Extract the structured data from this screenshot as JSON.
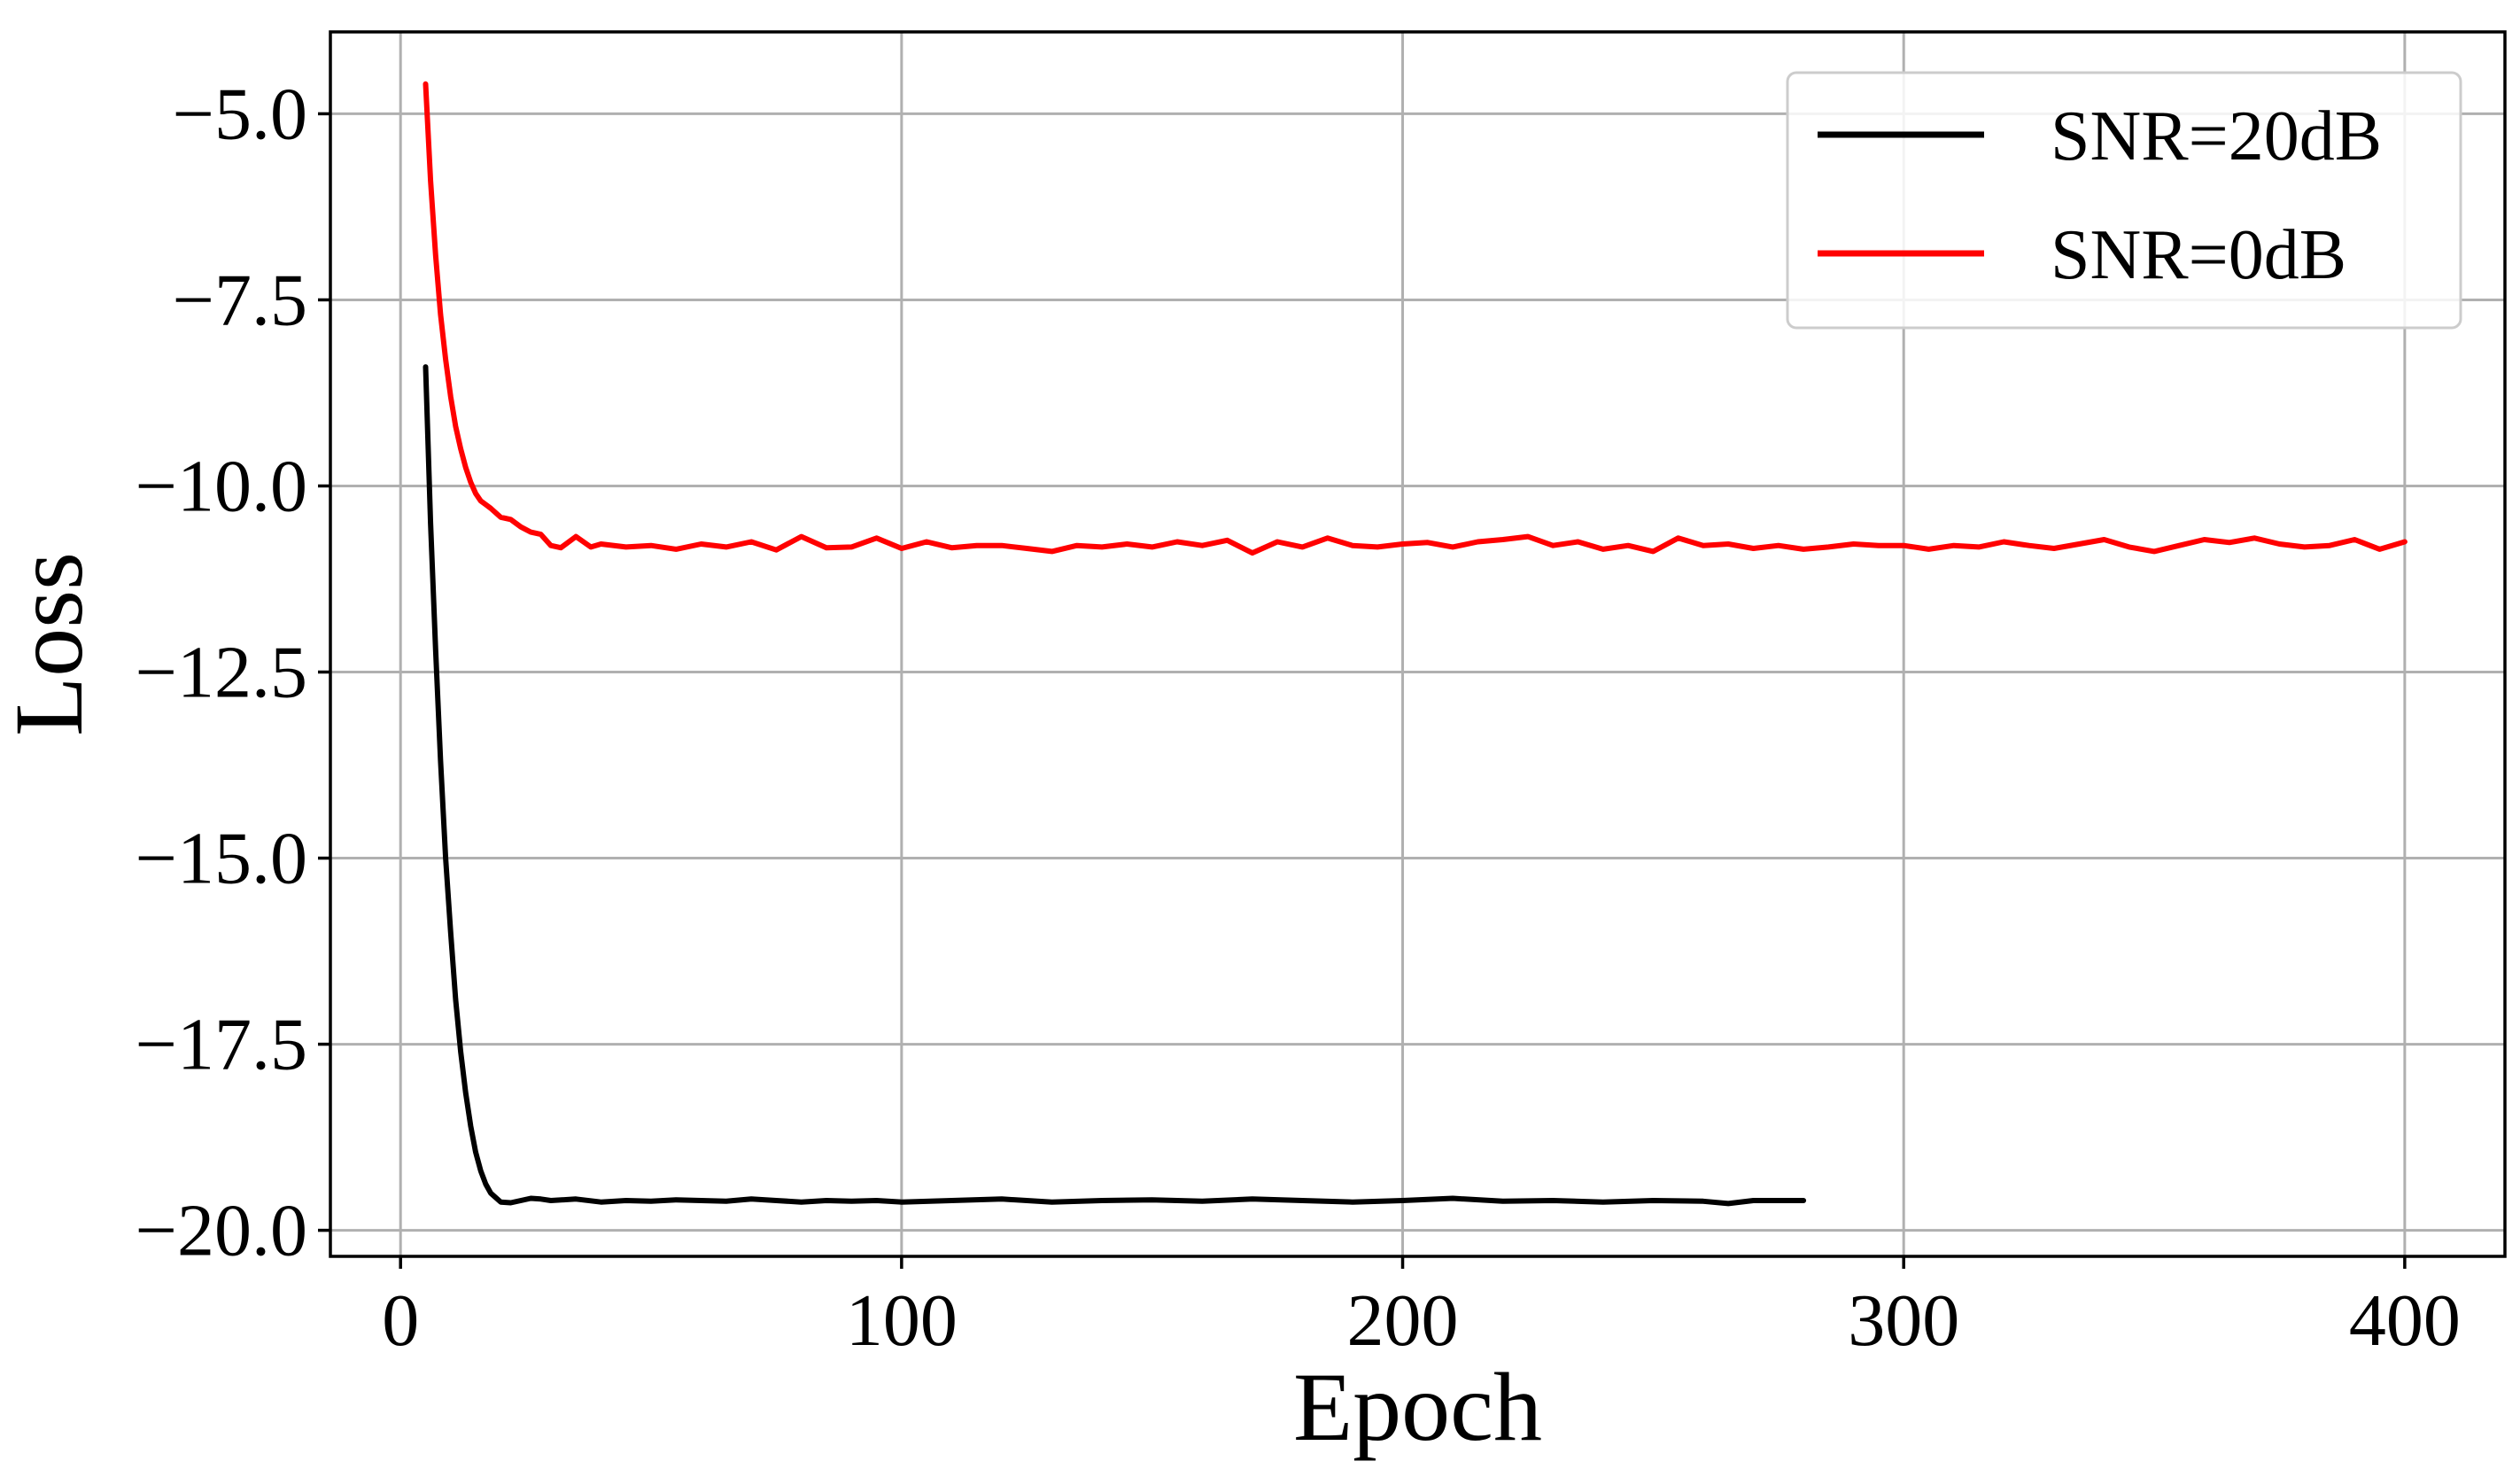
{
  "chart_data": {
    "type": "line",
    "xlabel": "Epoch",
    "ylabel": "Loss",
    "xlim": [
      -14,
      420
    ],
    "ylim": [
      -20.35,
      -3.9
    ],
    "xticks": [
      0,
      100,
      200,
      300,
      400
    ],
    "xtick_labels": [
      "0",
      "100",
      "200",
      "300",
      "400"
    ],
    "yticks": [
      -5.0,
      -7.5,
      -10.0,
      -12.5,
      -15.0,
      -17.5,
      -20.0
    ],
    "ytick_labels": [
      "−5.0",
      "−7.5",
      "−10.0",
      "−12.5",
      "−15.0",
      "−17.5",
      "−20.0"
    ],
    "grid": true,
    "legend_position": "top-right",
    "series": [
      {
        "name": "SNR=20dB",
        "color": "#000000",
        "x": [
          5,
          6,
          7,
          8,
          9,
          10,
          11,
          12,
          13,
          14,
          15,
          16,
          17,
          18,
          20,
          22,
          24,
          26,
          28,
          30,
          35,
          40,
          45,
          50,
          55,
          60,
          65,
          70,
          75,
          80,
          85,
          90,
          95,
          100,
          110,
          120,
          130,
          140,
          150,
          160,
          170,
          180,
          190,
          200,
          210,
          220,
          230,
          240,
          250,
          260,
          265,
          270,
          280
        ],
        "y": [
          -8.4,
          -10.5,
          -12.2,
          -13.7,
          -15.0,
          -16.0,
          -16.9,
          -17.6,
          -18.15,
          -18.6,
          -18.95,
          -19.2,
          -19.38,
          -19.5,
          -19.62,
          -19.63,
          -19.6,
          -19.57,
          -19.58,
          -19.6,
          -19.58,
          -19.62,
          -19.6,
          -19.61,
          -19.59,
          -19.6,
          -19.61,
          -19.58,
          -19.6,
          -19.62,
          -19.6,
          -19.61,
          -19.6,
          -19.62,
          -19.6,
          -19.58,
          -19.62,
          -19.6,
          -19.59,
          -19.61,
          -19.58,
          -19.6,
          -19.62,
          -19.6,
          -19.57,
          -19.61,
          -19.6,
          -19.62,
          -19.6,
          -19.61,
          -19.64,
          -19.6,
          -19.6
        ]
      },
      {
        "name": "SNR=0dB",
        "color": "#ff0000",
        "x": [
          5,
          6,
          7,
          8,
          9,
          10,
          11,
          12,
          13,
          14,
          15,
          16,
          17,
          18,
          20,
          22,
          24,
          26,
          28,
          30,
          32,
          35,
          38,
          40,
          45,
          50,
          55,
          60,
          65,
          70,
          75,
          80,
          85,
          90,
          95,
          100,
          105,
          110,
          115,
          120,
          125,
          130,
          135,
          140,
          145,
          150,
          155,
          160,
          165,
          170,
          175,
          180,
          185,
          190,
          195,
          200,
          205,
          210,
          215,
          220,
          225,
          230,
          235,
          240,
          245,
          250,
          255,
          260,
          265,
          270,
          275,
          280,
          285,
          290,
          295,
          300,
          305,
          310,
          315,
          320,
          325,
          330,
          335,
          340,
          345,
          350,
          355,
          360,
          365,
          370,
          375,
          380,
          385,
          390,
          395,
          400
        ],
        "y": [
          -4.6,
          -5.9,
          -6.9,
          -7.7,
          -8.3,
          -8.8,
          -9.2,
          -9.5,
          -9.75,
          -9.95,
          -10.1,
          -10.2,
          -10.25,
          -10.3,
          -10.42,
          -10.45,
          -10.55,
          -10.62,
          -10.65,
          -10.8,
          -10.83,
          -10.68,
          -10.82,
          -10.78,
          -10.82,
          -10.8,
          -10.85,
          -10.78,
          -10.82,
          -10.75,
          -10.86,
          -10.68,
          -10.83,
          -10.82,
          -10.7,
          -10.84,
          -10.75,
          -10.83,
          -10.8,
          -10.8,
          -10.84,
          -10.88,
          -10.8,
          -10.82,
          -10.78,
          -10.82,
          -10.75,
          -10.8,
          -10.73,
          -10.9,
          -10.75,
          -10.82,
          -10.7,
          -10.8,
          -10.82,
          -10.78,
          -10.76,
          -10.82,
          -10.75,
          -10.72,
          -10.68,
          -10.8,
          -10.75,
          -10.85,
          -10.8,
          -10.88,
          -10.7,
          -10.8,
          -10.78,
          -10.84,
          -10.8,
          -10.85,
          -10.82,
          -10.78,
          -10.8,
          -10.8,
          -10.85,
          -10.8,
          -10.82,
          -10.75,
          -10.8,
          -10.84,
          -10.78,
          -10.72,
          -10.82,
          -10.88,
          -10.8,
          -10.72,
          -10.76,
          -10.7,
          -10.78,
          -10.82,
          -10.8,
          -10.72,
          -10.85,
          -10.75
        ]
      }
    ]
  }
}
